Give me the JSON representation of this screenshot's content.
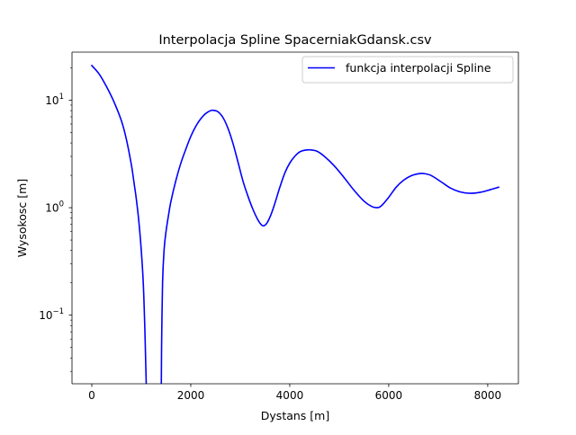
{
  "chart_data": {
    "type": "line",
    "title": "Interpolacja Spline SpacerniakGdansk.csv",
    "xlabel": "Dystans [m]",
    "ylabel": "Wysokosc [m]",
    "xlim": [
      -400,
      8620
    ],
    "ylim": [
      0.023,
      28
    ],
    "yscale": "log",
    "grid": false,
    "legend_position": "top-right",
    "x_ticks": [
      {
        "value": 0,
        "label": "0"
      },
      {
        "value": 2000,
        "label": "2000"
      },
      {
        "value": 4000,
        "label": "4000"
      },
      {
        "value": 6000,
        "label": "6000"
      },
      {
        "value": 8000,
        "label": "8000"
      }
    ],
    "y_ticks": [
      {
        "value": 0.1,
        "base": "10",
        "exp": "−1"
      },
      {
        "value": 1,
        "base": "10",
        "exp": "0"
      },
      {
        "value": 10,
        "base": "10",
        "exp": "1"
      }
    ],
    "series": [
      {
        "name": "funkcja interpolacji Spline",
        "color": "#0000ff",
        "segments": [
          [
            [
              0,
              21
            ],
            [
              150,
              17.5
            ],
            [
              300,
              13.3
            ],
            [
              450,
              9.6
            ],
            [
              600,
              6.4
            ],
            [
              700,
              4.3
            ],
            [
              800,
              2.5
            ],
            [
              850,
              1.75
            ],
            [
              900,
              1.2
            ],
            [
              950,
              0.75
            ],
            [
              1000,
              0.4
            ],
            [
              1040,
              0.2
            ],
            [
              1070,
              0.08
            ],
            [
              1090,
              0.035
            ],
            [
              1100,
              0.023
            ]
          ],
          [
            [
              1405,
              0.023
            ],
            [
              1410,
              0.05
            ],
            [
              1430,
              0.2
            ],
            [
              1460,
              0.4
            ],
            [
              1500,
              0.6
            ],
            [
              1550,
              0.85
            ],
            [
              1600,
              1.15
            ],
            [
              1700,
              1.8
            ],
            [
              1800,
              2.6
            ],
            [
              1900,
              3.5
            ],
            [
              2000,
              4.6
            ],
            [
              2100,
              5.7
            ],
            [
              2200,
              6.7
            ],
            [
              2300,
              7.5
            ],
            [
              2400,
              8.0
            ],
            [
              2450,
              8.05
            ],
            [
              2550,
              7.8
            ],
            [
              2650,
              6.9
            ],
            [
              2750,
              5.5
            ],
            [
              2850,
              4.0
            ],
            [
              2950,
              2.7
            ],
            [
              3050,
              1.8
            ],
            [
              3150,
              1.3
            ],
            [
              3250,
              0.98
            ],
            [
              3350,
              0.78
            ],
            [
              3430,
              0.69
            ],
            [
              3480,
              0.68
            ],
            [
              3540,
              0.72
            ],
            [
              3620,
              0.86
            ],
            [
              3700,
              1.1
            ],
            [
              3800,
              1.55
            ],
            [
              3900,
              2.1
            ],
            [
              4000,
              2.6
            ],
            [
              4100,
              3.0
            ],
            [
              4200,
              3.3
            ],
            [
              4300,
              3.42
            ],
            [
              4420,
              3.45
            ],
            [
              4550,
              3.35
            ],
            [
              4700,
              3.0
            ],
            [
              4900,
              2.45
            ],
            [
              5100,
              1.9
            ],
            [
              5300,
              1.45
            ],
            [
              5500,
              1.15
            ],
            [
              5650,
              1.03
            ],
            [
              5760,
              1.0
            ],
            [
              5850,
              1.04
            ],
            [
              6000,
              1.25
            ],
            [
              6150,
              1.55
            ],
            [
              6300,
              1.8
            ],
            [
              6450,
              1.98
            ],
            [
              6600,
              2.07
            ],
            [
              6700,
              2.08
            ],
            [
              6850,
              2.0
            ],
            [
              7050,
              1.75
            ],
            [
              7250,
              1.52
            ],
            [
              7450,
              1.4
            ],
            [
              7650,
              1.36
            ],
            [
              7850,
              1.39
            ],
            [
              8050,
              1.47
            ],
            [
              8220,
              1.55
            ]
          ]
        ]
      }
    ]
  }
}
